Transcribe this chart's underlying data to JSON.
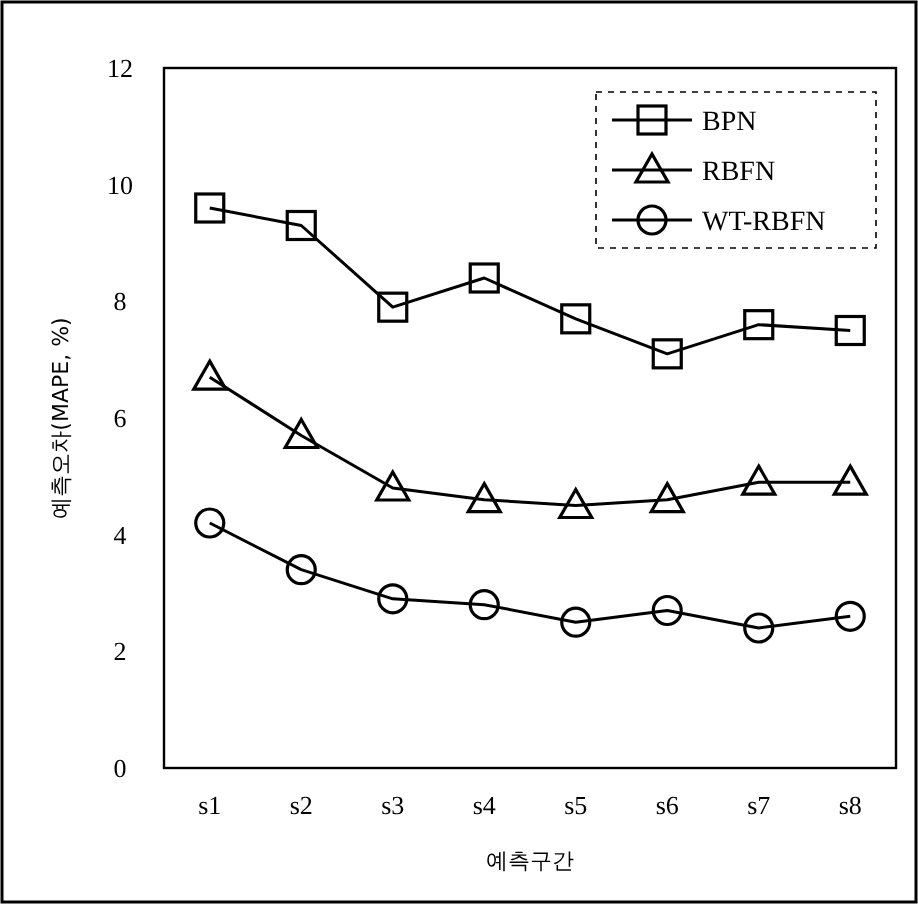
{
  "chart_data": {
    "type": "line",
    "xlabel": "예측구간",
    "ylabel": "예측오차(MAPE, %)",
    "categories": [
      "s1",
      "s2",
      "s3",
      "s4",
      "s5",
      "s6",
      "s7",
      "s8"
    ],
    "series": [
      {
        "name": "BPN",
        "color": "#000000",
        "marker": "square",
        "values": [
          9.6,
          9.3,
          7.9,
          8.4,
          7.7,
          7.1,
          7.6,
          7.5
        ]
      },
      {
        "name": "RBFN",
        "color": "#000000",
        "marker": "triangle",
        "values": [
          6.7,
          5.7,
          4.8,
          4.6,
          4.5,
          4.6,
          4.9,
          4.9
        ]
      },
      {
        "name": "WT-RBFN",
        "color": "#000000",
        "marker": "circle",
        "values": [
          4.2,
          3.4,
          2.9,
          2.8,
          2.5,
          2.7,
          2.4,
          2.6
        ]
      }
    ],
    "ylim": [
      0,
      12
    ],
    "yticks": [
      0,
      2,
      4,
      6,
      8,
      10,
      12
    ],
    "grid": false,
    "legend": "top right",
    "line_style": "solid"
  }
}
